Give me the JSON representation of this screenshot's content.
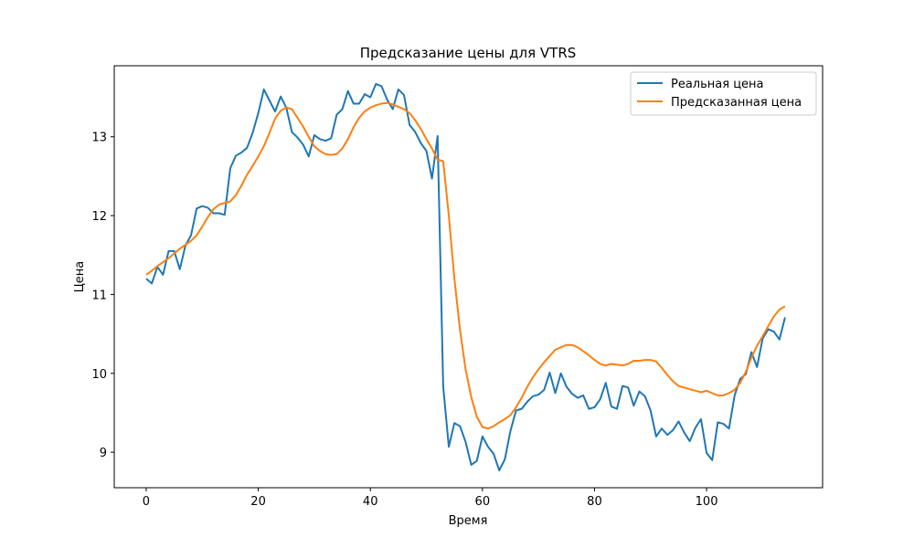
{
  "chart_data": {
    "type": "line",
    "title": "Предсказание цены для VTRS",
    "xlabel": "Время",
    "ylabel": "Цена",
    "xlim": [
      -5.7,
      120.7
    ],
    "ylim": [
      8.55,
      13.9
    ],
    "xticks": [
      0,
      20,
      40,
      60,
      80,
      100
    ],
    "yticks": [
      9,
      10,
      11,
      12,
      13
    ],
    "grid": false,
    "legend_position": "top-right",
    "series": [
      {
        "name": "Реальная цена",
        "color": "#1f77b4",
        "values": [
          11.2,
          11.14,
          11.35,
          11.25,
          11.55,
          11.55,
          11.32,
          11.62,
          11.75,
          12.09,
          12.12,
          12.1,
          12.03,
          12.03,
          12.01,
          12.6,
          12.76,
          12.8,
          12.86,
          13.05,
          13.3,
          13.6,
          13.46,
          13.32,
          13.51,
          13.37,
          13.06,
          12.99,
          12.9,
          12.75,
          13.02,
          12.97,
          12.95,
          12.98,
          13.28,
          13.35,
          13.58,
          13.42,
          13.42,
          13.54,
          13.5,
          13.67,
          13.64,
          13.47,
          13.35,
          13.6,
          13.53,
          13.15,
          13.06,
          12.92,
          12.82,
          12.47,
          13.01,
          9.83,
          9.07,
          9.37,
          9.33,
          9.13,
          8.84,
          8.89,
          9.2,
          9.07,
          8.98,
          8.77,
          8.91,
          9.27,
          9.53,
          9.55,
          9.64,
          9.71,
          9.73,
          9.79,
          10.01,
          9.75,
          10.0,
          9.83,
          9.74,
          9.69,
          9.72,
          9.55,
          9.57,
          9.67,
          9.88,
          9.58,
          9.55,
          9.84,
          9.82,
          9.59,
          9.77,
          9.71,
          9.53,
          9.2,
          9.3,
          9.22,
          9.28,
          9.39,
          9.25,
          9.14,
          9.31,
          9.42,
          8.99,
          8.9,
          9.38,
          9.36,
          9.3,
          9.72,
          9.93,
          9.99,
          10.27,
          10.08,
          10.44,
          10.56,
          10.53,
          10.43,
          10.71
        ]
      },
      {
        "name": "Предсказанная цена",
        "color": "#ff7f0e",
        "values": [
          11.25,
          11.3,
          11.36,
          11.41,
          11.46,
          11.52,
          11.58,
          11.63,
          11.68,
          11.75,
          11.86,
          11.98,
          12.08,
          12.14,
          12.16,
          12.18,
          12.26,
          12.38,
          12.52,
          12.63,
          12.75,
          12.88,
          13.05,
          13.23,
          13.33,
          13.37,
          13.35,
          13.24,
          13.13,
          13.0,
          12.88,
          12.82,
          12.78,
          12.77,
          12.78,
          12.85,
          12.97,
          13.12,
          13.24,
          13.32,
          13.37,
          13.4,
          13.42,
          13.43,
          13.41,
          13.38,
          13.35,
          13.3,
          13.21,
          13.1,
          12.97,
          12.85,
          12.71,
          12.69,
          12.0,
          11.2,
          10.55,
          10.05,
          9.7,
          9.45,
          9.32,
          9.3,
          9.33,
          9.38,
          9.42,
          9.47,
          9.57,
          9.69,
          9.83,
          9.95,
          10.05,
          10.14,
          10.22,
          10.3,
          10.33,
          10.36,
          10.36,
          10.33,
          10.28,
          10.23,
          10.17,
          10.12,
          10.1,
          10.12,
          10.11,
          10.1,
          10.12,
          10.16,
          10.16,
          10.17,
          10.17,
          10.15,
          10.07,
          9.98,
          9.9,
          9.84,
          9.82,
          9.8,
          9.78,
          9.76,
          9.78,
          9.75,
          9.72,
          9.72,
          9.75,
          9.79,
          9.88,
          10.02,
          10.2,
          10.35,
          10.47,
          10.6,
          10.72,
          10.81,
          10.85
        ]
      }
    ]
  }
}
